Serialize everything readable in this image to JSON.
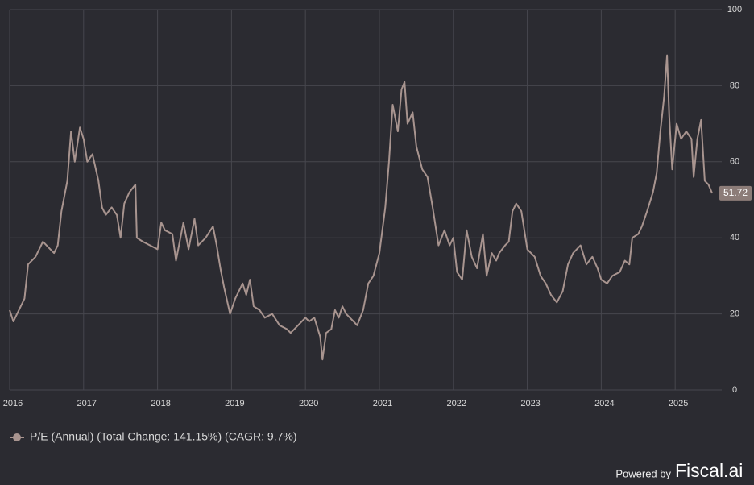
{
  "chart_data": {
    "type": "line",
    "xlim": [
      2016,
      2025.63
    ],
    "xticks": [
      2016,
      2017,
      2018,
      2019,
      2020,
      2021,
      2022,
      2023,
      2024,
      2025
    ],
    "ylim": [
      0,
      100
    ],
    "yticks": [
      0,
      20,
      40,
      60,
      80,
      100
    ],
    "grid": true,
    "series": [
      {
        "name": "P/E (Annual) (Total Change: 141.15%) (CAGR: 9.7%)",
        "color": "#a8948f",
        "x": [
          2016.0,
          2016.05,
          2016.1,
          2016.2,
          2016.25,
          2016.35,
          2016.45,
          2016.55,
          2016.6,
          2016.65,
          2016.7,
          2016.78,
          2016.83,
          2016.88,
          2016.95,
          2017.0,
          2017.05,
          2017.12,
          2017.2,
          2017.25,
          2017.3,
          2017.38,
          2017.45,
          2017.5,
          2017.55,
          2017.62,
          2017.7,
          2017.72,
          2017.8,
          2017.9,
          2018.0,
          2018.05,
          2018.1,
          2018.2,
          2018.25,
          2018.35,
          2018.42,
          2018.5,
          2018.55,
          2018.65,
          2018.75,
          2018.8,
          2018.85,
          2018.9,
          2018.98,
          2019.05,
          2019.15,
          2019.2,
          2019.25,
          2019.3,
          2019.38,
          2019.45,
          2019.55,
          2019.65,
          2019.75,
          2019.8,
          2019.9,
          2020.0,
          2020.05,
          2020.12,
          2020.2,
          2020.23,
          2020.28,
          2020.35,
          2020.4,
          2020.45,
          2020.5,
          2020.55,
          2020.65,
          2020.7,
          2020.78,
          2020.85,
          2020.92,
          2021.0,
          2021.08,
          2021.13,
          2021.18,
          2021.25,
          2021.3,
          2021.34,
          2021.38,
          2021.45,
          2021.5,
          2021.58,
          2021.65,
          2021.72,
          2021.8,
          2021.88,
          2021.95,
          2022.0,
          2022.05,
          2022.12,
          2022.18,
          2022.25,
          2022.32,
          2022.4,
          2022.45,
          2022.52,
          2022.58,
          2022.62,
          2022.7,
          2022.75,
          2022.8,
          2022.85,
          2022.92,
          2023.0,
          2023.1,
          2023.18,
          2023.25,
          2023.32,
          2023.4,
          2023.48,
          2023.55,
          2023.62,
          2023.72,
          2023.8,
          2023.88,
          2023.95,
          2024.0,
          2024.08,
          2024.15,
          2024.25,
          2024.32,
          2024.38,
          2024.42,
          2024.5,
          2024.55,
          2024.62,
          2024.7,
          2024.75,
          2024.8,
          2024.85,
          2024.89,
          2024.92,
          2024.96,
          2025.02,
          2025.08,
          2025.15,
          2025.22,
          2025.25,
          2025.3,
          2025.35,
          2025.4,
          2025.45,
          2025.5
        ],
        "values": [
          21,
          18,
          20,
          24,
          33,
          35,
          39,
          37,
          36,
          38,
          47,
          55,
          68,
          60,
          69,
          66,
          60,
          62,
          55,
          48,
          46,
          48,
          46,
          40,
          49,
          52,
          54,
          40,
          39,
          38,
          37,
          44,
          42,
          41,
          34,
          44,
          37,
          45,
          38,
          40,
          43,
          38,
          32,
          27,
          20,
          24,
          28,
          25,
          29,
          22,
          21,
          19,
          20,
          17,
          16,
          15,
          17,
          19,
          18,
          19,
          14,
          8,
          15,
          16,
          21,
          19,
          22,
          20,
          18,
          17,
          21,
          28,
          30,
          36,
          48,
          60,
          75,
          68,
          79,
          81,
          70,
          73,
          64,
          58,
          56,
          48,
          38,
          42,
          38,
          40,
          31,
          29,
          42,
          35,
          32,
          41,
          30,
          36,
          34,
          36,
          38,
          39,
          47,
          49,
          47,
          37,
          35,
          30,
          28,
          25,
          23,
          26,
          33,
          36,
          38,
          33,
          35,
          32,
          29,
          28,
          30,
          31,
          34,
          33,
          40,
          41,
          43,
          47,
          52,
          57,
          68,
          77,
          88,
          72,
          58,
          70,
          66,
          68,
          66,
          56,
          66,
          71,
          55,
          54,
          51.72
        ]
      }
    ]
  },
  "footer": {
    "powered_by": "Powered by",
    "brand": "Fiscal.ai"
  }
}
